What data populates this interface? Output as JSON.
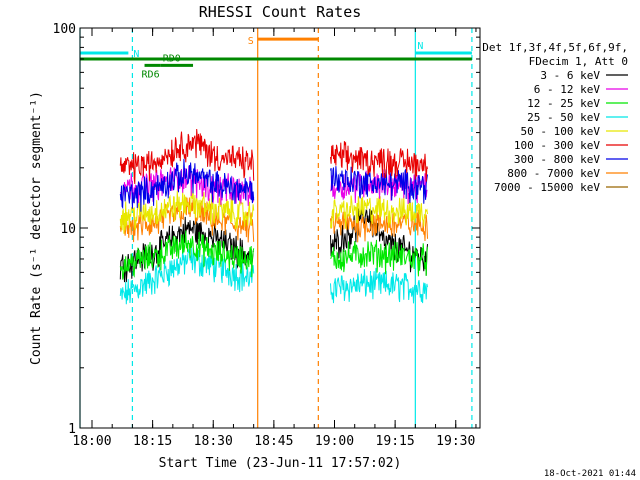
{
  "chart_data": {
    "type": "line",
    "title": "RHESSI Count Rates",
    "xlabel": "Start Time (23-Jun-11 17:57:02)",
    "ylabel": "Count Rate (s⁻¹ detector segment⁻¹)",
    "yscale": "log",
    "ylim": [
      1,
      100
    ],
    "xlim": [
      "17:57:02",
      "19:36:00"
    ],
    "x_ticks": [
      "18:00",
      "18:15",
      "18:30",
      "18:45",
      "19:00",
      "19:15",
      "19:30"
    ],
    "y_ticks": [
      "1",
      "10",
      "100"
    ],
    "grid": false,
    "legend_placement": "right",
    "legend_header": [
      "Det 1f,3f,4f,5f,6f,9f,",
      "FDecim 1, Att 0"
    ],
    "gap": [
      "18:40",
      "18:59"
    ],
    "segments": [
      {
        "start": "18:07",
        "end": "18:40"
      },
      {
        "start": "18:59",
        "end": "19:23"
      }
    ],
    "series": [
      {
        "name": "3 - 6 keV",
        "color": "#000000",
        "values_seg1": [
          {
            "t": "18:07",
            "y": 6.5
          },
          {
            "t": "18:15",
            "y": 7.5
          },
          {
            "t": "18:20",
            "y": 9
          },
          {
            "t": "18:24",
            "y": 10
          },
          {
            "t": "18:30",
            "y": 9
          },
          {
            "t": "18:40",
            "y": 7
          }
        ],
        "values_seg2": [
          {
            "t": "18:59",
            "y": 8
          },
          {
            "t": "19:05",
            "y": 10
          },
          {
            "t": "19:08",
            "y": 12
          },
          {
            "t": "19:12",
            "y": 8.5
          },
          {
            "t": "19:23",
            "y": 7
          }
        ]
      },
      {
        "name": "6 - 12 keV",
        "color": "#e800e8",
        "values_seg1": [
          {
            "t": "18:07",
            "y": 16
          },
          {
            "t": "18:15",
            "y": 16.5
          },
          {
            "t": "18:23",
            "y": 18
          },
          {
            "t": "18:30",
            "y": 16
          },
          {
            "t": "18:40",
            "y": 15
          }
        ],
        "values_seg2": [
          {
            "t": "18:59",
            "y": 16
          },
          {
            "t": "19:08",
            "y": 17
          },
          {
            "t": "19:23",
            "y": 16
          }
        ]
      },
      {
        "name": "12 - 25 keV",
        "color": "#00e800",
        "values_seg1": [
          {
            "t": "18:07",
            "y": 6.5
          },
          {
            "t": "18:15",
            "y": 7.2
          },
          {
            "t": "18:24",
            "y": 8.5
          },
          {
            "t": "18:30",
            "y": 7.5
          },
          {
            "t": "18:40",
            "y": 7
          }
        ],
        "values_seg2": [
          {
            "t": "18:59",
            "y": 7
          },
          {
            "t": "19:08",
            "y": 7.5
          },
          {
            "t": "19:23",
            "y": 7
          }
        ]
      },
      {
        "name": "25 - 50 keV",
        "color": "#00e8e8",
        "values_seg1": [
          {
            "t": "18:07",
            "y": 4.5
          },
          {
            "t": "18:15",
            "y": 5.5
          },
          {
            "t": "18:24",
            "y": 7
          },
          {
            "t": "18:30",
            "y": 6.5
          },
          {
            "t": "18:40",
            "y": 5.5
          }
        ],
        "values_seg2": [
          {
            "t": "18:59",
            "y": 5
          },
          {
            "t": "19:08",
            "y": 5.3
          },
          {
            "t": "19:23",
            "y": 5
          }
        ]
      },
      {
        "name": "50 - 100 keV",
        "color": "#e8e800",
        "values_seg1": [
          {
            "t": "18:07",
            "y": 11.5
          },
          {
            "t": "18:15",
            "y": 12
          },
          {
            "t": "18:24",
            "y": 13.5
          },
          {
            "t": "18:30",
            "y": 12.5
          },
          {
            "t": "18:40",
            "y": 11.5
          }
        ],
        "values_seg2": [
          {
            "t": "18:59",
            "y": 12
          },
          {
            "t": "19:08",
            "y": 12.5
          },
          {
            "t": "19:23",
            "y": 12
          }
        ]
      },
      {
        "name": "100 - 300 keV",
        "color": "#e80000",
        "values_seg1": [
          {
            "t": "18:07",
            "y": 20
          },
          {
            "t": "18:15",
            "y": 21
          },
          {
            "t": "18:22",
            "y": 26
          },
          {
            "t": "18:26",
            "y": 27
          },
          {
            "t": "18:30",
            "y": 23
          },
          {
            "t": "18:40",
            "y": 21
          }
        ],
        "values_seg2": [
          {
            "t": "18:59",
            "y": 23
          },
          {
            "t": "19:08",
            "y": 22
          },
          {
            "t": "19:23",
            "y": 21
          }
        ]
      },
      {
        "name": "300 - 800 keV",
        "color": "#0000e8",
        "values_seg1": [
          {
            "t": "18:07",
            "y": 14.5
          },
          {
            "t": "18:15",
            "y": 15.5
          },
          {
            "t": "18:24",
            "y": 19
          },
          {
            "t": "18:30",
            "y": 16.5
          },
          {
            "t": "18:40",
            "y": 15.5
          }
        ],
        "values_seg2": [
          {
            "t": "18:59",
            "y": 18
          },
          {
            "t": "19:08",
            "y": 17
          },
          {
            "t": "19:23",
            "y": 16.5
          }
        ]
      },
      {
        "name": "800 - 7000 keV",
        "color": "#ff8000",
        "values_seg1": [
          {
            "t": "18:07",
            "y": 10
          },
          {
            "t": "18:15",
            "y": 10.5
          },
          {
            "t": "18:24",
            "y": 12.5
          },
          {
            "t": "18:30",
            "y": 11
          },
          {
            "t": "18:40",
            "y": 10
          }
        ],
        "values_seg2": [
          {
            "t": "18:59",
            "y": 10.5
          },
          {
            "t": "19:08",
            "y": 10.5
          },
          {
            "t": "19:23",
            "y": 10.5
          }
        ]
      },
      {
        "name": "7000 - 15000 keV",
        "color": "#996600",
        "values_seg1": [],
        "values_seg2": []
      }
    ],
    "annotations": [
      {
        "label": "N",
        "color": "#00e8e8",
        "t_start": "17:57:02",
        "t_end": "18:09",
        "y": 75
      },
      {
        "label": "N",
        "color": "#00e8e8",
        "t_start": "19:20",
        "t_end": "19:34",
        "y": 75
      },
      {
        "label": "RD0",
        "color": "#008800",
        "t_start": "18:17",
        "t_end": "18:25",
        "y": 65
      },
      {
        "label": "RD6",
        "color": "#008800",
        "t_start": "18:13",
        "t_end": "18:17",
        "y": 65
      },
      {
        "label": "S",
        "color": "#ff8000",
        "t_start": "18:41",
        "t_end": "18:56",
        "y": 88
      },
      {
        "label": "",
        "color": "#008800",
        "t_start": "17:57:02",
        "t_end": "19:34",
        "y": 70
      }
    ],
    "vertical_lines": [
      {
        "t": "17:57:02",
        "color": "#00e8e8",
        "style": "solid"
      },
      {
        "t": "18:10",
        "color": "#00e8e8",
        "style": "dashed"
      },
      {
        "t": "18:41",
        "color": "#ff8000",
        "style": "solid"
      },
      {
        "t": "18:56",
        "color": "#ff8000",
        "style": "dashed"
      },
      {
        "t": "19:20",
        "color": "#00e8e8",
        "style": "solid"
      },
      {
        "t": "19:34",
        "color": "#00e8e8",
        "style": "dashed"
      }
    ]
  },
  "footer_timestamp": "18-Oct-2021 01:44"
}
